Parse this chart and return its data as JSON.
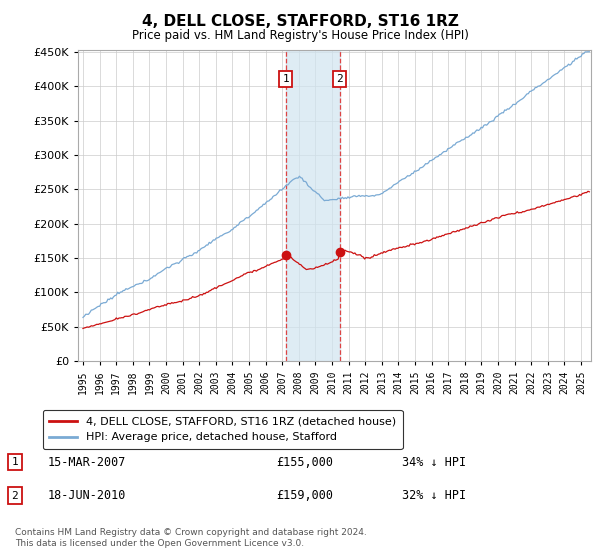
{
  "title": "4, DELL CLOSE, STAFFORD, ST16 1RZ",
  "subtitle": "Price paid vs. HM Land Registry's House Price Index (HPI)",
  "ylim": [
    0,
    450000
  ],
  "xlim_start": 1995.0,
  "xlim_end": 2025.5,
  "transaction1": {
    "date_num": 2007.21,
    "price": 155000,
    "label": "1",
    "date_str": "15-MAR-2007",
    "pct": "34%"
  },
  "transaction2": {
    "date_num": 2010.46,
    "price": 159000,
    "label": "2",
    "date_str": "18-JUN-2010",
    "pct": "32%"
  },
  "hpi_color": "#7aaad4",
  "property_color": "#cc1111",
  "legend_entry1": "4, DELL CLOSE, STAFFORD, ST16 1RZ (detached house)",
  "legend_entry2": "HPI: Average price, detached house, Stafford",
  "footer": "Contains HM Land Registry data © Crown copyright and database right 2024.\nThis data is licensed under the Open Government Licence v3.0.",
  "background_color": "#ffffff",
  "shade_color": "#d0e4f0",
  "dashed_color": "#dd4444"
}
